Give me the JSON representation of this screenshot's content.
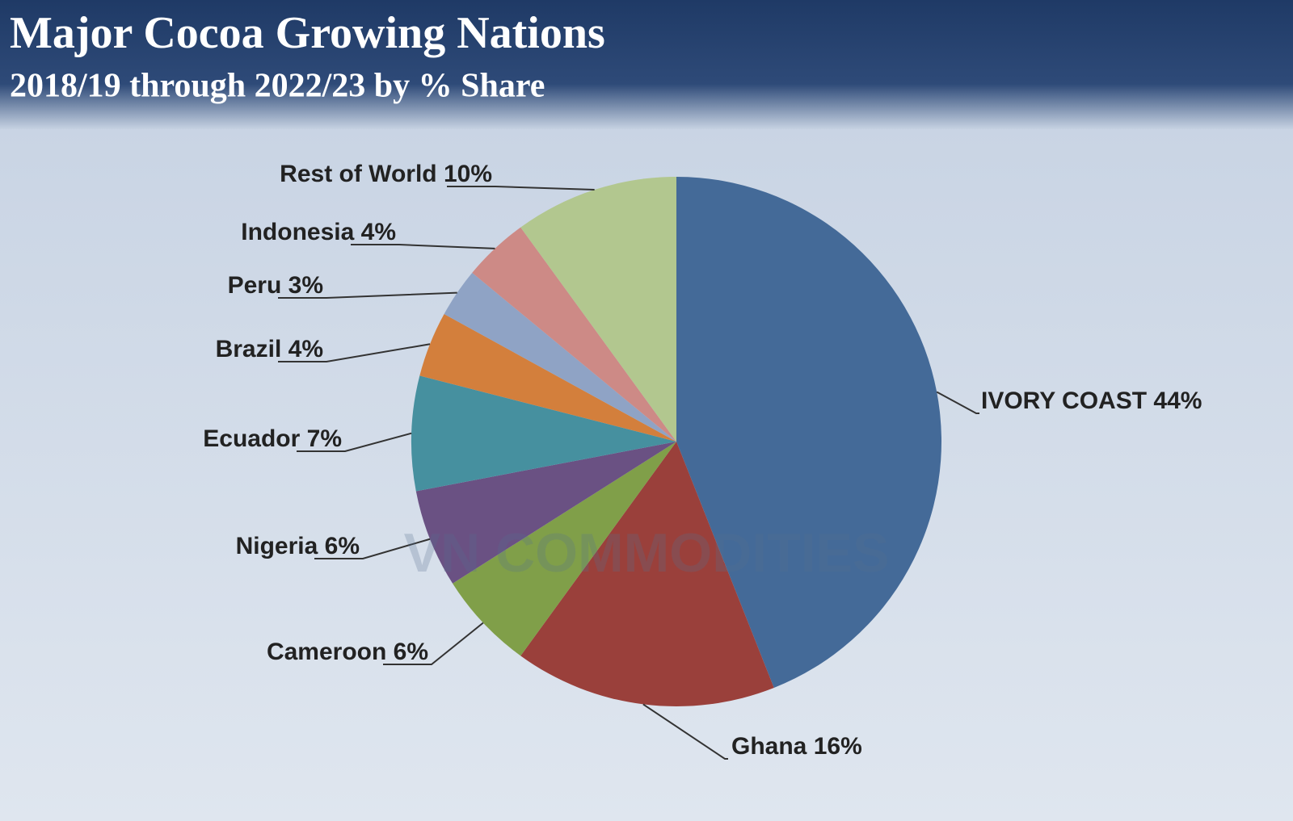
{
  "chart_data": {
    "type": "pie",
    "title": "Major Cocoa Growing Nations",
    "subtitle": "2018/19 through 2022/23 by % Share",
    "watermark": "VN COMMODITIES",
    "categories": [
      "IVORY COAST",
      "Ghana",
      "Cameroon",
      "Nigeria",
      "Ecuador",
      "Brazil",
      "Peru",
      "Indonesia",
      "Rest of World"
    ],
    "values": [
      44,
      16,
      6,
      6,
      7,
      4,
      3,
      4,
      10
    ],
    "value_labels": [
      "44%",
      "16%",
      "6%",
      "6%",
      "7%",
      "4%",
      "3%",
      "4%",
      "10%"
    ],
    "colors": [
      "#446a98",
      "#9a403b",
      "#809f49",
      "#6a5183",
      "#46909f",
      "#d37f3c",
      "#8fa3c5",
      "#cd8a86",
      "#b2c78f"
    ]
  }
}
